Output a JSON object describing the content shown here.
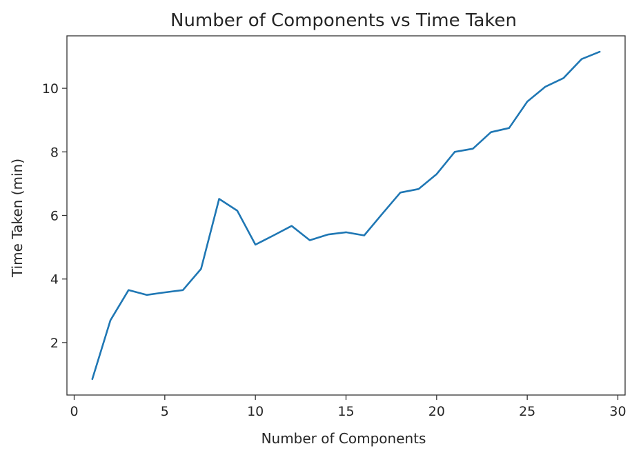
{
  "chart_data": {
    "type": "line",
    "title": "Number of Components vs Time Taken",
    "xlabel": "Number of Components",
    "ylabel": "Time Taken (min)",
    "xlim": [
      -0.4,
      30.4
    ],
    "ylim": [
      0.35,
      11.65
    ],
    "xticks": [
      0,
      5,
      10,
      15,
      20,
      25,
      30
    ],
    "yticks": [
      2,
      4,
      6,
      8,
      10
    ],
    "grid": false,
    "line_color": "#1f77b4",
    "series": [
      {
        "x": [
          1,
          2,
          3,
          4,
          5,
          6,
          7,
          8,
          9,
          10,
          11,
          12,
          13,
          14,
          15,
          16,
          17,
          18,
          19,
          20,
          21,
          22,
          23,
          24,
          25,
          26,
          27,
          28,
          29
        ],
        "values": [
          0.85,
          2.7,
          3.65,
          3.5,
          3.58,
          3.65,
          4.32,
          6.52,
          6.15,
          5.08,
          5.37,
          5.67,
          5.22,
          5.4,
          5.47,
          5.37,
          6.05,
          6.72,
          6.83,
          7.3,
          8.0,
          8.1,
          8.62,
          8.75,
          9.58,
          10.05,
          10.32,
          10.92,
          11.15
        ]
      }
    ]
  }
}
